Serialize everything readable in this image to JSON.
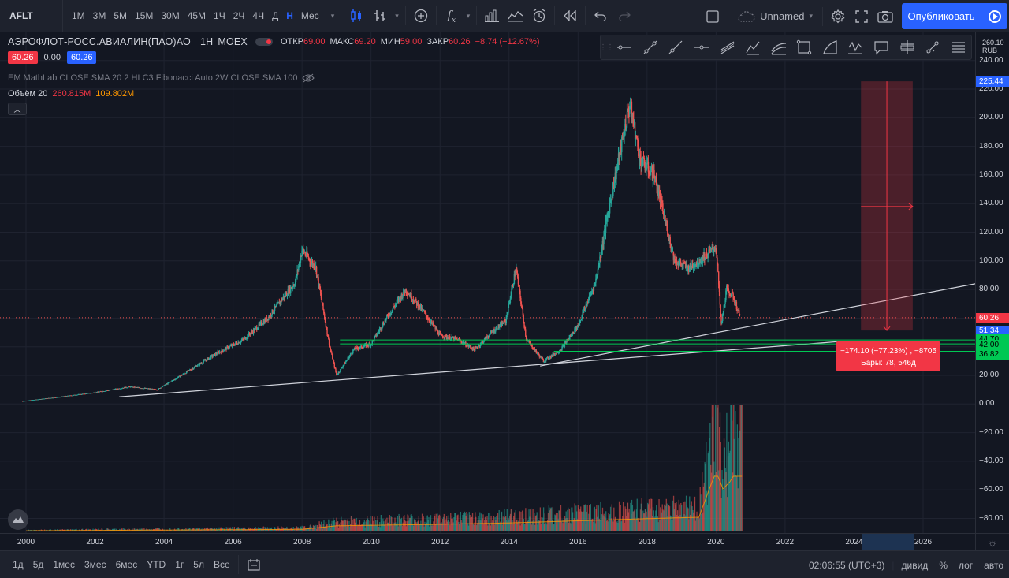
{
  "top_toolbar": {
    "symbol": "AFLT",
    "timeframes": [
      "1М",
      "3М",
      "5М",
      "15М",
      "30М",
      "45М",
      "1Ч",
      "2Ч",
      "4Ч",
      "Д",
      "Н",
      "Мес"
    ],
    "active_timeframe": "Н",
    "layout_name": "Unnamed",
    "publish_label": "Опубликовать",
    "icons": [
      "candles-icon",
      "compare-icon",
      "add-indicator-icon",
      "fx-icon",
      "templates-icon",
      "alert-icon",
      "replay-icon",
      "undo-icon",
      "redo-icon",
      "layout-icon",
      "cloud-icon",
      "settings-icon",
      "fullscreen-icon",
      "camera-icon",
      "play-icon"
    ]
  },
  "legend": {
    "title": "АЭРОФЛОТ-РОСС.АВИАЛИН(ПАО)АО",
    "interval": "1Н",
    "exchange": "MOEX",
    "open_label": "ОТКР",
    "open": "69.00",
    "high_label": "МАКС",
    "high": "69.20",
    "low_label": "МИН",
    "low": "59.00",
    "close_label": "ЗАКР",
    "close": "60.26",
    "change": "−8.74 (−12.67%)",
    "bid": "60.26",
    "spread": "0.00",
    "ask": "60.26",
    "indicators": "EM MathLab CLOSE SMA 20 2 HLC3 Fibonacci Auto 2W CLOSE SMA 100",
    "volume_label": "Объём 20",
    "volume_value": "260.815M",
    "volume_ma": "109.802M"
  },
  "price_axis": {
    "currency_top": "260.10",
    "currency": "RUB",
    "ticks": [
      "240.00",
      "220.00",
      "200.00",
      "180.00",
      "160.00",
      "140.00",
      "120.00",
      "100.00",
      "80.00",
      "60.00",
      "40.00",
      "20.00",
      "0.00",
      "−20.00",
      "−40.00",
      "−60.00",
      "−80.00"
    ],
    "badges": {
      "target": "225.44",
      "last": "60.26",
      "level1": "51.34",
      "level2": "44.70",
      "level3": "42.00",
      "level4": "36.82"
    }
  },
  "time_axis": {
    "labels": [
      "2000",
      "2002",
      "2004",
      "2006",
      "2008",
      "2010",
      "2012",
      "2014",
      "2016",
      "2018",
      "2020",
      "2022",
      "2024",
      "2026"
    ]
  },
  "measure": {
    "line1": "−174.10 (−77.23%) , −8705",
    "line2": "Бары: 78, 546д"
  },
  "bottom_toolbar": {
    "ranges": [
      "1д",
      "5д",
      "1мес",
      "3мес",
      "6мес",
      "YTD",
      "1г",
      "5л",
      "Все"
    ],
    "clock": "02:06:55 (UTC+3)",
    "options": [
      "дивид",
      "%",
      "лог",
      "авто"
    ]
  },
  "colors": {
    "background": "#131722",
    "panel": "#1e222d",
    "up": "#26a69a",
    "down": "#ef5350",
    "accent": "#2962ff",
    "level_green": "#00c853"
  },
  "chart_data": {
    "type": "line",
    "title": "АЭРОФЛОТ-РОСС.АВИАЛИН(ПАО)АО",
    "x_unit": "year",
    "ylim": [
      -80,
      260
    ],
    "series": [
      {
        "name": "AFLT",
        "x": [
          1999.9,
          2001.0,
          2002.0,
          2003.0,
          2003.8,
          2004.5,
          2005.5,
          2006.3,
          2007.0,
          2007.8,
          2008.0,
          2008.4,
          2008.8,
          2009.0,
          2009.5,
          2010.0,
          2010.5,
          2011.0,
          2011.5,
          2012.0,
          2012.5,
          2013.0,
          2013.5,
          2013.9,
          2014.2,
          2014.5,
          2015.0,
          2015.5,
          2016.0,
          2016.5,
          2017.0,
          2017.5,
          2017.8,
          2018.2,
          2018.5,
          2018.8,
          2019.2,
          2019.5,
          2020.0,
          2020.15,
          2020.3,
          2020.5,
          2020.7
        ],
        "values": [
          2,
          5,
          8,
          12,
          10,
          20,
          35,
          45,
          60,
          85,
          108,
          95,
          40,
          20,
          38,
          42,
          62,
          80,
          65,
          48,
          45,
          38,
          50,
          58,
          95,
          45,
          30,
          38,
          55,
          85,
          150,
          210,
          170,
          160,
          130,
          100,
          95,
          100,
          110,
          55,
          80,
          75,
          60
        ]
      },
      {
        "name": "Объём 20",
        "x": [
          2000.0,
          2004.0,
          2008.0,
          2009.0,
          2012.0,
          2014.0,
          2016.0,
          2018.0,
          2019.5,
          2020.0,
          2020.2,
          2020.4,
          2020.7
        ],
        "values": [
          1,
          2,
          3,
          8,
          10,
          12,
          15,
          18,
          20,
          85,
          60,
          70,
          95
        ]
      }
    ],
    "levels": [
      51.34,
      44.7,
      42.0,
      36.82
    ]
  }
}
